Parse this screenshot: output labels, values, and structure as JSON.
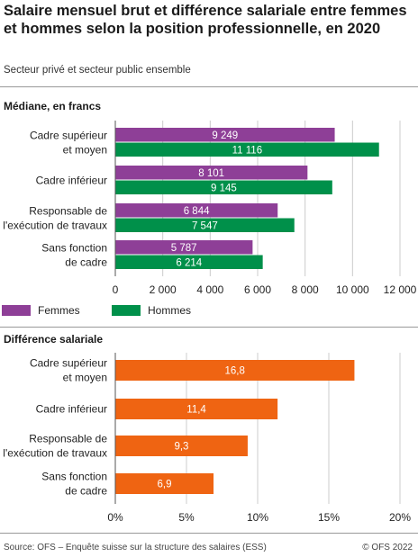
{
  "title": "Salaire mensuel brut et différence salariale entre femmes et hommes selon la position professionnelle, en 2020",
  "subtitle": "Secteur privé et secteur public ensemble",
  "footer": {
    "source": "Source: OFS – Enquête suisse sur la structure des salaires (ESS)",
    "copyright": "© OFS 2022"
  },
  "colors": {
    "femmes": "#8e3f97",
    "hommes": "#00904a",
    "difference": "#ef6412",
    "grid": "#cccccc",
    "axis": "#555555"
  },
  "chart_data": [
    {
      "type": "bar",
      "orientation": "horizontal",
      "title": "Médiane, en francs",
      "categories": [
        [
          "Cadre supérieur",
          "et moyen"
        ],
        [
          "Cadre inférieur"
        ],
        [
          "Responsable de",
          "l'exécution de travaux"
        ],
        [
          "Sans fonction",
          "de cadre"
        ]
      ],
      "series": [
        {
          "name": "Femmes",
          "values": [
            9249,
            8101,
            6844,
            5787
          ],
          "labels": [
            "9 249",
            "8 101",
            "6 844",
            "5 787"
          ]
        },
        {
          "name": "Hommes",
          "values": [
            11116,
            9145,
            7547,
            6214
          ],
          "labels": [
            "11 116",
            "9 145",
            "7 547",
            "6 214"
          ]
        }
      ],
      "xlim": [
        0,
        12000
      ],
      "xticks": [
        0,
        2000,
        4000,
        6000,
        8000,
        10000,
        12000
      ],
      "xtick_labels": [
        "0",
        "2 000",
        "4 000",
        "6 000",
        "8 000",
        "10 000",
        "12 000"
      ],
      "grid": true,
      "legend": "bottom"
    },
    {
      "type": "bar",
      "orientation": "horizontal",
      "title": "Différence salariale",
      "categories": [
        [
          "Cadre supérieur",
          "et moyen"
        ],
        [
          "Cadre inférieur"
        ],
        [
          "Responsable de",
          "l'exécution de travaux"
        ],
        [
          "Sans fonction",
          "de cadre"
        ]
      ],
      "values": [
        16.8,
        11.4,
        9.3,
        6.9
      ],
      "labels": [
        "16,8",
        "11,4",
        "9,3",
        "6,9"
      ],
      "xlim": [
        0,
        20
      ],
      "xticks": [
        0,
        5,
        10,
        15,
        20
      ],
      "xtick_labels": [
        "0%",
        "5%",
        "10%",
        "15%",
        "20%"
      ],
      "grid": true
    }
  ]
}
